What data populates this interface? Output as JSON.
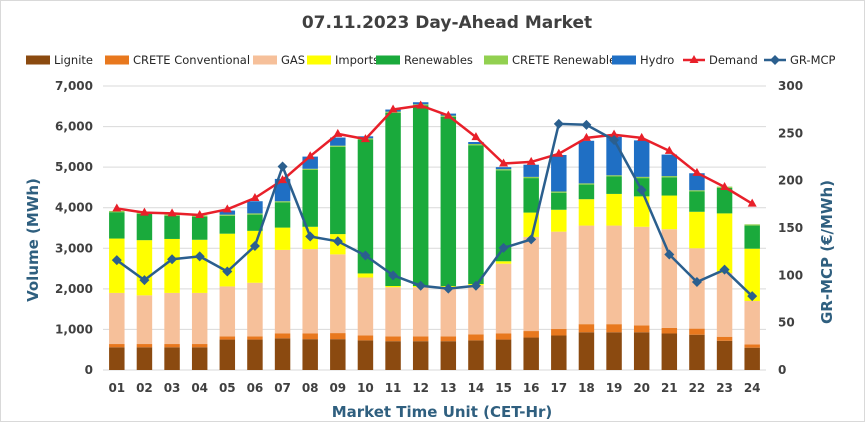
{
  "chart_data": {
    "type": "bar",
    "subtype": "stacked-bar-with-lines",
    "title": "07.11.2023  Day-Ahead Market",
    "xlabel": "Market Time Unit (CET-Hr)",
    "ylabel": "Volume (MWh)",
    "y2label": "GR-MCP (€/MWh)",
    "ylim": [
      0,
      7000
    ],
    "y2lim": [
      0,
      300
    ],
    "y_ticks": [
      "0",
      "1,000",
      "2,000",
      "3,000",
      "4,000",
      "5,000",
      "6,000",
      "7,000"
    ],
    "y2_ticks": [
      "0",
      "50",
      "100",
      "150",
      "200",
      "250",
      "300"
    ],
    "grid": true,
    "legend_position": "top",
    "categories": [
      "01",
      "02",
      "03",
      "04",
      "05",
      "06",
      "07",
      "08",
      "09",
      "10",
      "11",
      "12",
      "13",
      "14",
      "15",
      "16",
      "17",
      "18",
      "19",
      "20",
      "21",
      "22",
      "23",
      "24"
    ],
    "series": [
      {
        "name": "Lignite",
        "kind": "bar",
        "color": "#8b4a10",
        "values": [
          560,
          560,
          560,
          560,
          750,
          750,
          780,
          760,
          760,
          730,
          710,
          710,
          710,
          730,
          750,
          800,
          850,
          930,
          930,
          930,
          900,
          870,
          720,
          550
        ]
      },
      {
        "name": "CRETE Conventional",
        "kind": "bar",
        "color": "#e8781e",
        "values": [
          80,
          80,
          80,
          80,
          80,
          80,
          120,
          140,
          150,
          120,
          120,
          120,
          120,
          150,
          150,
          160,
          160,
          200,
          200,
          170,
          140,
          150,
          100,
          80
        ]
      },
      {
        "name": "GAS",
        "kind": "bar",
        "color": "#f6c09a",
        "values": [
          1260,
          1200,
          1260,
          1260,
          1230,
          1320,
          2060,
          2080,
          1940,
          1430,
          1210,
          1210,
          1210,
          1210,
          1720,
          2320,
          2400,
          2430,
          2430,
          2430,
          2430,
          1980,
          1570,
          1070
        ]
      },
      {
        "name": "Imports",
        "kind": "bar",
        "color": "#ffff00",
        "values": [
          1340,
          1360,
          1330,
          1310,
          1300,
          1280,
          550,
          550,
          500,
          100,
          30,
          30,
          30,
          30,
          60,
          600,
          540,
          650,
          780,
          750,
          830,
          900,
          1470,
          1290
        ]
      },
      {
        "name": "Renewables",
        "kind": "bar",
        "color": "#1aaa3c",
        "values": [
          650,
          650,
          570,
          570,
          440,
          400,
          620,
          1400,
          2150,
          3300,
          4270,
          4450,
          4170,
          3420,
          2240,
          850,
          420,
          360,
          430,
          450,
          450,
          500,
          630,
          570
        ]
      },
      {
        "name": "CRETE Renewables",
        "kind": "bar",
        "color": "#92d050",
        "values": [
          30,
          30,
          30,
          30,
          30,
          30,
          30,
          30,
          30,
          30,
          30,
          30,
          30,
          30,
          30,
          30,
          30,
          30,
          30,
          30,
          30,
          30,
          30,
          30
        ]
      },
      {
        "name": "Hydro",
        "kind": "bar",
        "color": "#1f6fc4",
        "values": [
          0,
          0,
          0,
          0,
          100,
          300,
          550,
          300,
          200,
          50,
          50,
          50,
          50,
          50,
          50,
          300,
          900,
          1050,
          950,
          900,
          530,
          420,
          0,
          0
        ]
      },
      {
        "name": "Demand",
        "kind": "line",
        "axis": "left",
        "color": "#e8202a",
        "values": [
          3980,
          3880,
          3860,
          3820,
          3960,
          4240,
          4680,
          5270,
          5820,
          5690,
          6420,
          6520,
          6270,
          5740,
          5090,
          5130,
          5330,
          5720,
          5800,
          5720,
          5400,
          4860,
          4510,
          4100
        ]
      },
      {
        "name": "GR-MCP",
        "kind": "line",
        "axis": "right",
        "color": "#2b5f8e",
        "values": [
          116,
          95,
          117,
          120,
          104,
          131,
          215,
          141,
          136,
          121,
          100,
          89,
          86,
          89,
          129,
          138,
          260,
          259,
          243,
          190,
          122,
          93,
          106,
          78
        ]
      }
    ]
  }
}
